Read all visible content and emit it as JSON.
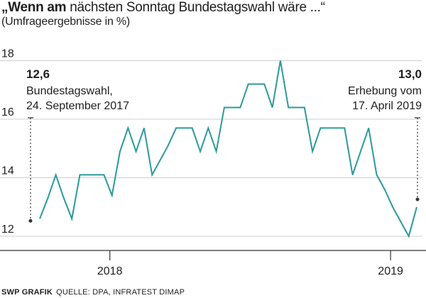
{
  "header": {
    "title_bold": "„Wenn am",
    "title_rest": " nächsten Sonntag Bundestagswahl wäre ...“",
    "subtitle": "(Umfrageergebnisse in %)"
  },
  "footer": {
    "brand": "SWP GRAFIK",
    "source": "QUELLE: DPA, INFRATEST DIMAP"
  },
  "colors": {
    "line": "#2a9a9a",
    "grid": "#cfcfcf",
    "axis": "#333333",
    "text": "#1f1f1f"
  },
  "chart_data": {
    "type": "line",
    "title": "„Wenn am nächsten Sonntag Bundestagswahl wäre ...“",
    "subtitle": "(Umfrageergebnisse in %)",
    "xlabel": "",
    "ylabel": "",
    "ylim": [
      11.5,
      18.5
    ],
    "yticks": [
      12,
      14,
      16,
      18
    ],
    "grid": true,
    "x_tick_labels": [
      {
        "label": "2018",
        "index": 9
      },
      {
        "label": "2019",
        "index": 44
      }
    ],
    "series": [
      {
        "values": [
          12.6,
          13.3,
          14.1,
          13.3,
          12.6,
          14.1,
          14.1,
          14.1,
          14.1,
          13.4,
          14.9,
          15.7,
          14.9,
          15.7,
          14.1,
          14.6,
          15.1,
          15.7,
          15.7,
          15.7,
          14.9,
          15.7,
          14.9,
          16.4,
          16.4,
          16.4,
          17.2,
          17.2,
          17.2,
          16.4,
          18.0,
          16.4,
          16.4,
          16.4,
          14.9,
          15.7,
          15.7,
          15.7,
          15.7,
          14.1,
          14.9,
          15.7,
          14.1,
          13.6,
          13.0,
          12.5,
          12.0,
          13.0
        ]
      }
    ],
    "annotations": [
      {
        "value": "12,6",
        "line1": "Bundestagswahl,",
        "line2": "24. September 2017",
        "side": "left"
      },
      {
        "value": "13,0",
        "line1": "Erhebung vom",
        "line2": "17. April 2019",
        "side": "right"
      }
    ]
  }
}
